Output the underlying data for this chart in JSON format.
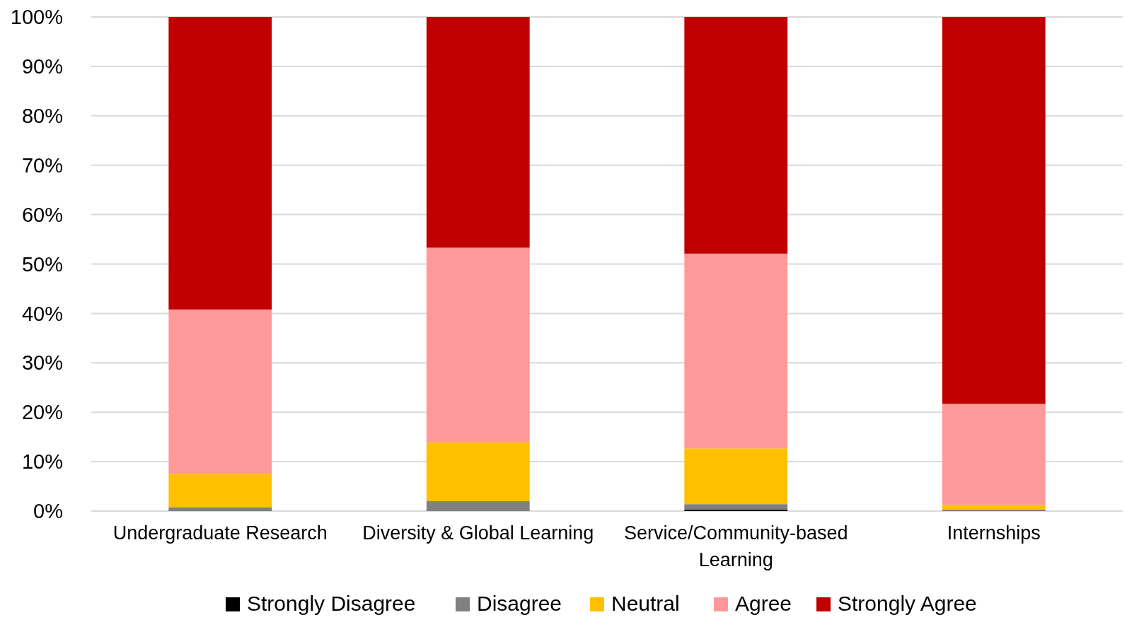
{
  "chart_data": {
    "type": "bar",
    "stacked": true,
    "categories": [
      "Undergraduate Research",
      "Diversity & Global Learning",
      "Service/Community-based Learning",
      "Internships"
    ],
    "series": [
      {
        "name": "Strongly Disagree",
        "color": "#000000",
        "values": [
          0,
          0,
          0.3,
          0
        ]
      },
      {
        "name": "Disagree",
        "color": "#808080",
        "values": [
          0.8,
          2.0,
          1.1,
          0.3
        ]
      },
      {
        "name": "Neutral",
        "color": "#ffc000",
        "values": [
          6.7,
          11.9,
          11.3,
          1.0
        ]
      },
      {
        "name": "Agree",
        "color": "#ff9999",
        "values": [
          33.3,
          39.4,
          39.4,
          20.4
        ]
      },
      {
        "name": "Strongly Agree",
        "color": "#c00000",
        "values": [
          59.2,
          46.7,
          47.9,
          78.3
        ]
      }
    ],
    "ylim": [
      0,
      100
    ],
    "yticks": [
      {
        "value": 0,
        "label": "0%"
      },
      {
        "value": 10,
        "label": "10%"
      },
      {
        "value": 20,
        "label": "20%"
      },
      {
        "value": 30,
        "label": "30%"
      },
      {
        "value": 40,
        "label": "40%"
      },
      {
        "value": 50,
        "label": "50%"
      },
      {
        "value": 60,
        "label": "60%"
      },
      {
        "value": 70,
        "label": "70%"
      },
      {
        "value": 80,
        "label": "80%"
      },
      {
        "value": 90,
        "label": "90%"
      },
      {
        "value": 100,
        "label": "100%"
      }
    ],
    "grid": "y",
    "legend": "bottom"
  }
}
